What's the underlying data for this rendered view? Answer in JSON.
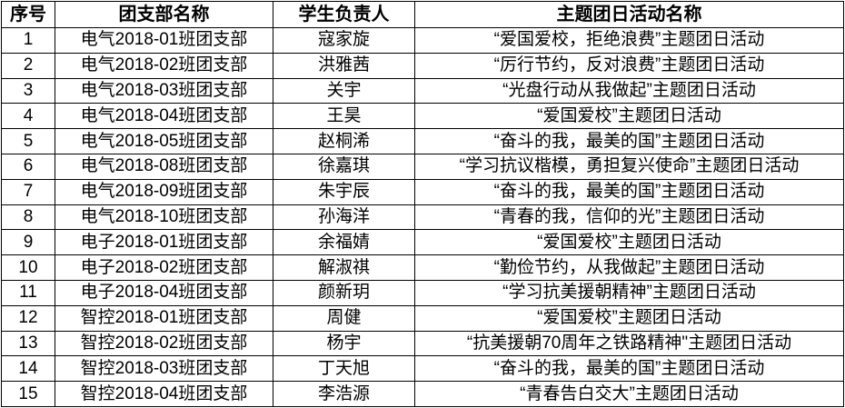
{
  "headers": [
    "序号",
    "团支部名称",
    "学生负责人",
    "主题团日活动名称"
  ],
  "rows": [
    [
      "1",
      "电气2018-01班团支部",
      "寇家旋",
      "“爱国爱校，拒绝浪费”主题团日活动"
    ],
    [
      "2",
      "电气2018-02班团支部",
      "洪雅茜",
      "“厉行节约，反对浪费”主题团日活动"
    ],
    [
      "3",
      "电气2018-03班团支部",
      "关宇",
      "“光盘行动从我做起”主题团日活动"
    ],
    [
      "4",
      "电气2018-04班团支部",
      "王昊",
      "“爱国爱校”主题团日活动"
    ],
    [
      "5",
      "电气2018-05班团支部",
      "赵桐浠",
      "“奋斗的我，最美的国”主题团日活动"
    ],
    [
      "6",
      "电气2018-08班团支部",
      "徐嘉琪",
      "“学习抗议楷模，勇担复兴使命”主题团日活动"
    ],
    [
      "7",
      "电气2018-09班团支部",
      "朱宇辰",
      "“奋斗的我，最美的国”主题团日活动"
    ],
    [
      "8",
      "电气2018-10班团支部",
      "孙海洋",
      "“青春的我，信仰的光”主题团日活动"
    ],
    [
      "9",
      "电子2018-01班团支部",
      "余福婧",
      "“爱国爱校”主题团日活动"
    ],
    [
      "10",
      "电子2018-02班团支部",
      "解淑祺",
      "“勤俭节约，从我做起”主题团日活动"
    ],
    [
      "11",
      "电子2018-04班团支部",
      "颜新玥",
      "“学习抗美援朝精神”主题团日活动"
    ],
    [
      "12",
      "智控2018-01班团支部",
      "周健",
      "“爱国爱校”主题团日活动"
    ],
    [
      "13",
      "智控2018-02班团支部",
      "杨宇",
      "“抗美援朝70周年之铁路精神\"主题团日活动"
    ],
    [
      "14",
      "智控2018-03班团支部",
      "丁天旭",
      "“奋斗的我，最美的国”主题团日活动"
    ],
    [
      "15",
      "智控2018-04班团支部",
      "李浩源",
      "“青春告白交大”主题团日活动"
    ]
  ]
}
